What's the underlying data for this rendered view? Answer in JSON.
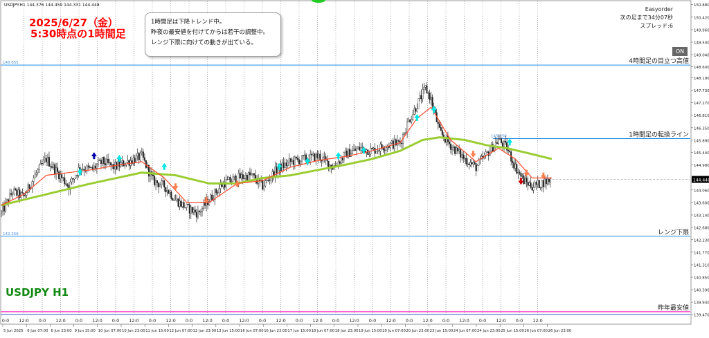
{
  "header": {
    "symbol_info": "USDJPY.H1  144.376 144.459 144.331 144.448",
    "date_line": "2025/6/27（金）",
    "time_line": "5:30時点の1時間足",
    "symbol_label": "USDJPY H1"
  },
  "note": {
    "lines": [
      "1時間足は下降トレンド中。",
      "昨夜の最安値を付けてからは若干の調整中。",
      "レンジ下限に向けての動きが出ている。"
    ]
  },
  "ea_panel": {
    "name": "Easyorder",
    "countdown": "次の足まで34分07秒",
    "spread": "スプレッド:6",
    "on_button": "ON"
  },
  "colors": {
    "bull": "#222222",
    "bear": "#222222",
    "ema_fast": "#ff4a2a",
    "ema_slow": "#9acd32",
    "level_line": "#1e88e5",
    "yearly_low_line": "#ff44cc",
    "buy_arrow": "#00e5e5",
    "sell_arrow": "#ff7f50",
    "dark_buy_arrow": "#0000aa",
    "dark_sell_arrow": "#cc0000",
    "price_tag_bg": "#000000"
  },
  "chart_data": {
    "type": "candlestick",
    "title": "",
    "ylim": [
      139.4,
      151.0
    ],
    "y_ticks": [
      "150.880",
      "150.420",
      "149.960",
      "149.500",
      "149.040",
      "148.600",
      "148.190",
      "147.730",
      "147.270",
      "146.810",
      "146.350",
      "145.890",
      "145.440",
      "144.980",
      "144.448",
      "144.060",
      "143.600",
      "143.140",
      "142.680",
      "142.230",
      "141.770",
      "141.310",
      "140.850",
      "140.390",
      "139.930",
      "139.470"
    ],
    "x_ticks": [
      "5 Jun 2025",
      "6 Jun 07:00",
      "6 Jun 23:00",
      "9 Jun 15:00",
      "10 Jun 07:00",
      "10 Jun 23:00",
      "11 Jun 15:00",
      "12 Jun 07:00",
      "12 Jun 23:00",
      "13 Jun 15:00",
      "16 Jun 07:00",
      "16 Jun 23:00",
      "17 Jun 15:00",
      "18 Jun 07:00",
      "18 Jun 23:00",
      "19 Jun 15:00",
      "20 Jun 07:00",
      "20 Jun 23:00",
      "23 Jun 15:00",
      "24 Jun 07:00",
      "24 Jun 23:00",
      "25 Jun 15:00",
      "26 Jun 07:00",
      "26 Jun 23:00"
    ],
    "x_labels": [
      "0:0",
      "12:0",
      "0:0",
      "12:0",
      "0:0",
      "12:0",
      "0:0",
      "12:0",
      "0:0",
      "12:0",
      "0:0",
      "12:0",
      "0:0",
      "12:0",
      "0:0",
      "12:0",
      "0:0",
      "12:0",
      "0:0",
      "12:0",
      "0:0",
      "12:0",
      "0:0",
      "12:0",
      "0:0",
      "12:0",
      "0:0",
      "12:0",
      "0:0",
      "12:0"
    ],
    "current_price": 144.448,
    "levels": [
      {
        "label": "4時間足の目立つ高値",
        "price": 148.655,
        "tag": "148.655"
      },
      {
        "label": "1時間足の転換ライン",
        "price": 145.95,
        "tag": "145.950"
      },
      {
        "label": "レンジ下限",
        "price": 142.356,
        "tag": "142.356"
      },
      {
        "label": "昨年最安値",
        "price": 139.58
      }
    ],
    "path_points": [
      [
        0,
        143.2
      ],
      [
        8,
        144.0
      ],
      [
        16,
        143.8
      ],
      [
        24,
        144.6
      ],
      [
        32,
        145.2
      ],
      [
        40,
        144.7
      ],
      [
        48,
        144.2
      ],
      [
        56,
        144.9
      ],
      [
        64,
        144.8
      ],
      [
        72,
        145.1
      ],
      [
        80,
        144.9
      ],
      [
        90,
        145.1
      ],
      [
        100,
        145.3
      ],
      [
        108,
        144.4
      ],
      [
        116,
        144.2
      ],
      [
        124,
        143.7
      ],
      [
        132,
        143.4
      ],
      [
        140,
        143.2
      ],
      [
        148,
        143.7
      ],
      [
        158,
        144.3
      ],
      [
        168,
        144.5
      ],
      [
        178,
        144.6
      ],
      [
        186,
        144.2
      ],
      [
        196,
        144.8
      ],
      [
        206,
        145.1
      ],
      [
        216,
        145.2
      ],
      [
        226,
        145.3
      ],
      [
        236,
        144.9
      ],
      [
        246,
        145.4
      ],
      [
        256,
        145.6
      ],
      [
        264,
        145.5
      ],
      [
        274,
        145.7
      ],
      [
        284,
        145.8
      ],
      [
        290,
        146.6
      ],
      [
        296,
        147.2
      ],
      [
        302,
        147.8
      ],
      [
        306,
        147.4
      ],
      [
        312,
        146.2
      ],
      [
        320,
        145.7
      ],
      [
        330,
        145.2
      ],
      [
        338,
        144.9
      ],
      [
        346,
        145.4
      ],
      [
        354,
        145.9
      ],
      [
        360,
        145.6
      ],
      [
        366,
        144.9
      ],
      [
        372,
        144.4
      ],
      [
        378,
        144.2
      ],
      [
        384,
        144.3
      ],
      [
        392,
        144.45
      ]
    ],
    "ema_fast": [
      [
        0,
        143.5
      ],
      [
        16,
        143.9
      ],
      [
        32,
        144.6
      ],
      [
        48,
        144.7
      ],
      [
        64,
        144.8
      ],
      [
        80,
        144.95
      ],
      [
        100,
        145.1
      ],
      [
        116,
        144.5
      ],
      [
        132,
        143.6
      ],
      [
        148,
        143.6
      ],
      [
        168,
        144.3
      ],
      [
        186,
        144.4
      ],
      [
        206,
        144.9
      ],
      [
        226,
        145.15
      ],
      [
        246,
        145.3
      ],
      [
        264,
        145.5
      ],
      [
        284,
        145.8
      ],
      [
        296,
        146.7
      ],
      [
        306,
        147.1
      ],
      [
        320,
        145.9
      ],
      [
        338,
        145.1
      ],
      [
        354,
        145.6
      ],
      [
        366,
        145.2
      ],
      [
        378,
        144.5
      ],
      [
        392,
        144.5
      ]
    ],
    "ema_slow": [
      [
        0,
        143.5
      ],
      [
        32,
        143.9
      ],
      [
        64,
        144.3
      ],
      [
        100,
        144.7
      ],
      [
        124,
        144.6
      ],
      [
        148,
        144.3
      ],
      [
        168,
        144.3
      ],
      [
        186,
        144.5
      ],
      [
        206,
        144.6
      ],
      [
        226,
        144.8
      ],
      [
        246,
        145.0
      ],
      [
        264,
        145.2
      ],
      [
        284,
        145.5
      ],
      [
        300,
        145.9
      ],
      [
        312,
        146.0
      ],
      [
        330,
        145.9
      ],
      [
        346,
        145.7
      ],
      [
        360,
        145.6
      ],
      [
        376,
        145.4
      ],
      [
        392,
        145.2
      ]
    ],
    "buy_signals": [
      [
        56,
        144.7
      ],
      [
        84,
        145.2
      ],
      [
        218,
        145.1
      ],
      [
        258,
        145.5
      ],
      [
        296,
        146.7
      ],
      [
        308,
        147.0
      ],
      [
        362,
        145.8
      ],
      [
        198,
        144.9
      ],
      [
        240,
        145.3
      ],
      [
        116,
        144.9
      ]
    ],
    "sell_signals": [
      [
        124,
        144.2
      ],
      [
        146,
        143.7
      ],
      [
        168,
        144.3
      ],
      [
        336,
        145.4
      ],
      [
        374,
        144.7
      ],
      [
        386,
        144.6
      ]
    ],
    "dark_buy_signals": [
      [
        66,
        145.3
      ]
    ],
    "dark_sell_signals": [
      [
        370,
        144.4
      ]
    ]
  }
}
